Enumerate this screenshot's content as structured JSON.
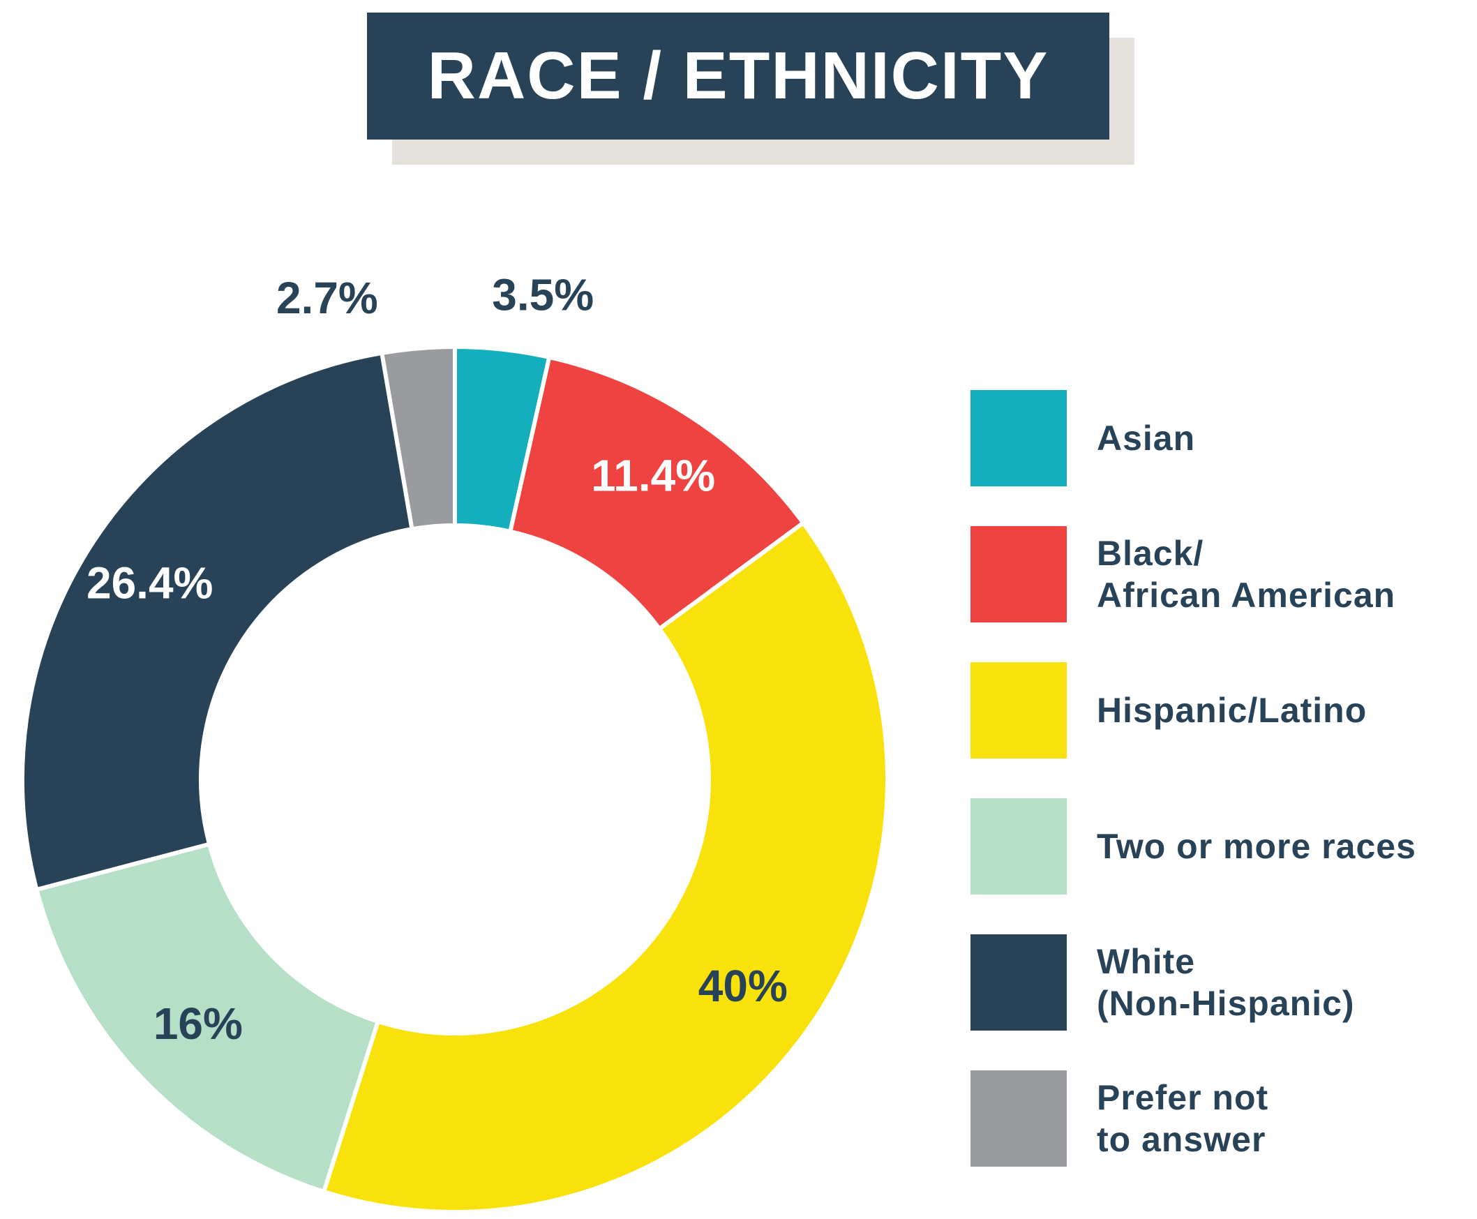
{
  "chart_data": {
    "type": "pie",
    "title": "RACE / ETHNICITY",
    "categories": [
      "Asian",
      "Black/\nAfrican American",
      "Hispanic/Latino",
      "Two or more races",
      "White\n(Non-Hispanic)",
      "Prefer not\nto answer"
    ],
    "values": [
      3.5,
      11.4,
      40,
      16,
      26.4,
      2.7
    ],
    "value_labels": [
      "3.5%",
      "11.4%",
      "40%",
      "16%",
      "26.4%",
      "2.7%"
    ],
    "colors": [
      "#14aebd",
      "#ee4340",
      "#f9e20b",
      "#b5dfc6",
      "#284357",
      "#9a9b9e"
    ],
    "label_colors": [
      "#284357",
      "#ffffff",
      "#284357",
      "#284357",
      "#ffffff",
      "#284357"
    ],
    "donut": true,
    "legend": "right"
  }
}
